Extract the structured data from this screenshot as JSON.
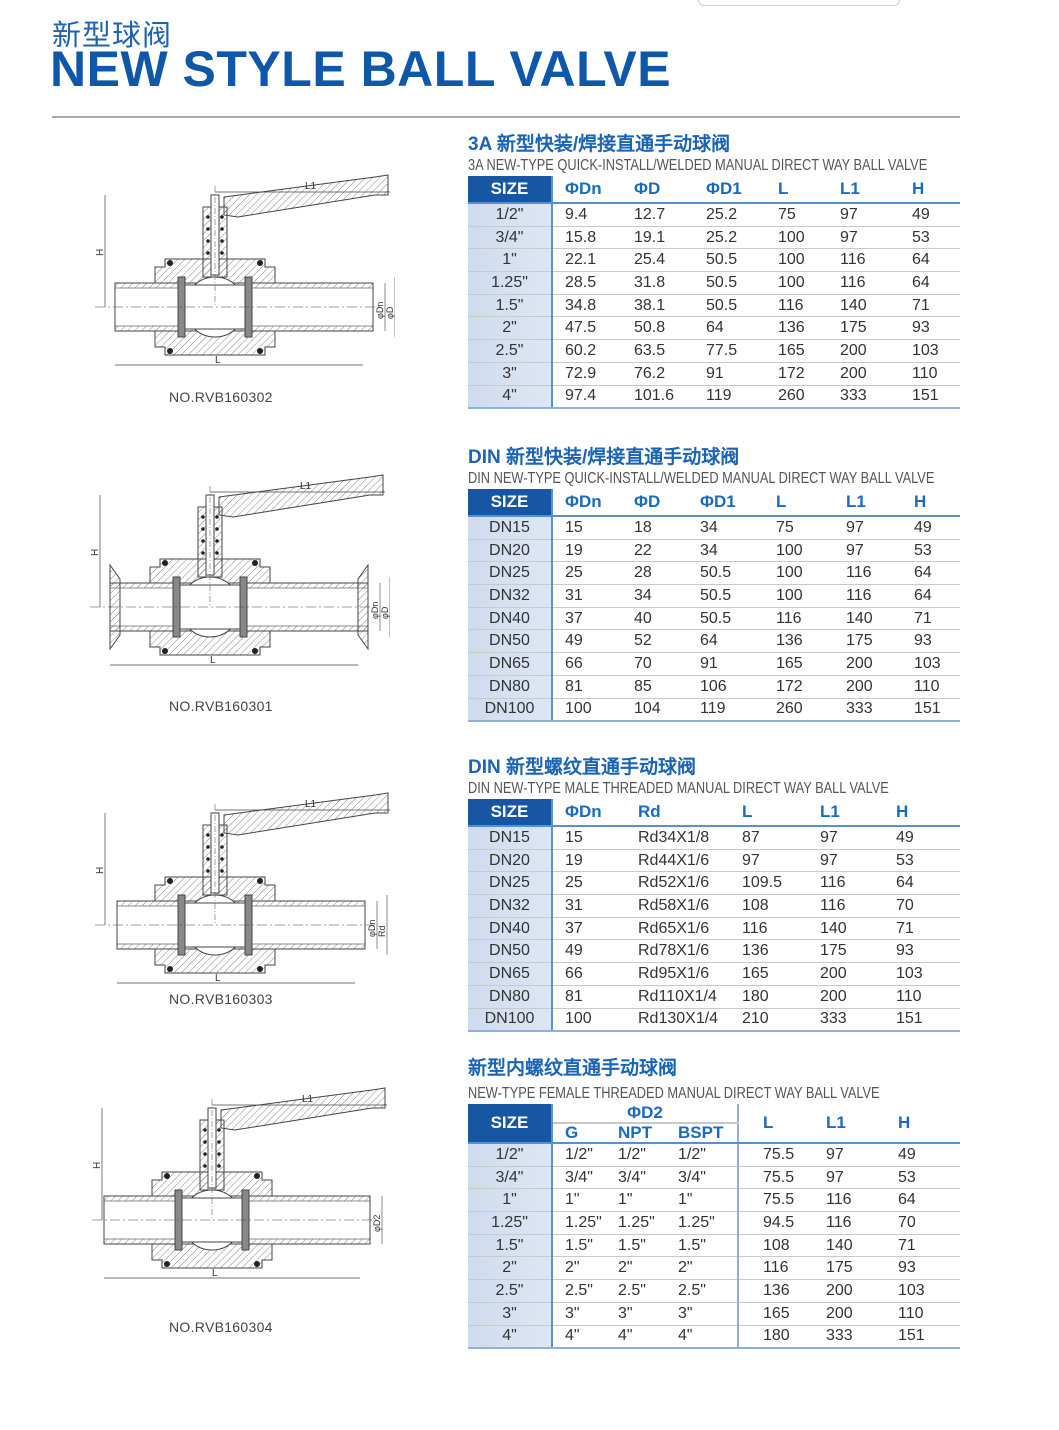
{
  "header": {
    "title_cn": "新型球阀",
    "title_en": "NEW STYLE BALL VALVE"
  },
  "colors": {
    "brand_blue": "#0f57a8",
    "size_header_bg": "#1756a2",
    "size_column_bg": "#d5dff0",
    "column_header_text": "#1a6bc0"
  },
  "sections": [
    {
      "title": "3A 新型快装/焊接直通手动球阀",
      "subtitle": "3A NEW-TYPE QUICK-INSTALL/WELDED MANUAL DIRECT WAY BALL VALVE",
      "model": "NO.RVB160302",
      "drawing_labels": {
        "top": "L1",
        "left": "H",
        "bottom": "L",
        "right": [
          "φDn",
          "φD"
        ]
      },
      "columns": [
        "SIZE",
        "ΦDn",
        "ΦD",
        "ΦD1",
        "L",
        "L1",
        "H"
      ],
      "rows": [
        [
          "1/2\"",
          "9.4",
          "12.7",
          "25.2",
          "75",
          "97",
          "49"
        ],
        [
          "3/4\"",
          "15.8",
          "19.1",
          "25.2",
          "100",
          "97",
          "53"
        ],
        [
          "1\"",
          "22.1",
          "25.4",
          "50.5",
          "100",
          "116",
          "64"
        ],
        [
          "1.25\"",
          "28.5",
          "31.8",
          "50.5",
          "100",
          "116",
          "64"
        ],
        [
          "1.5\"",
          "34.8",
          "38.1",
          "50.5",
          "116",
          "140",
          "71"
        ],
        [
          "2\"",
          "47.5",
          "50.8",
          "64",
          "136",
          "175",
          "93"
        ],
        [
          "2.5\"",
          "60.2",
          "63.5",
          "77.5",
          "165",
          "200",
          "103"
        ],
        [
          "3\"",
          "72.9",
          "76.2",
          "91",
          "172",
          "200",
          "110"
        ],
        [
          "4\"",
          "97.4",
          "101.6",
          "119",
          "260",
          "333",
          "151"
        ]
      ]
    },
    {
      "title": "DIN 新型快装/焊接直通手动球阀",
      "subtitle": "DIN NEW-TYPE QUICK-INSTALL/WELDED MANUAL DIRECT WAY BALL VALVE",
      "model": "NO.RVB160301",
      "drawing_labels": {
        "top": "L1",
        "left": "H",
        "bottom": "L",
        "right": [
          "φDn",
          "φD",
          "φD1"
        ]
      },
      "columns": [
        "SIZE",
        "ΦDn",
        "ΦD",
        "ΦD1",
        "L",
        "L1",
        "H"
      ],
      "rows": [
        [
          "DN15",
          "15",
          "18",
          "34",
          "75",
          "97",
          "49"
        ],
        [
          "DN20",
          "19",
          "22",
          "34",
          "100",
          "97",
          "53"
        ],
        [
          "DN25",
          "25",
          "28",
          "50.5",
          "100",
          "116",
          "64"
        ],
        [
          "DN32",
          "31",
          "34",
          "50.5",
          "100",
          "116",
          "64"
        ],
        [
          "DN40",
          "37",
          "40",
          "50.5",
          "116",
          "140",
          "71"
        ],
        [
          "DN50",
          "49",
          "52",
          "64",
          "136",
          "175",
          "93"
        ],
        [
          "DN65",
          "66",
          "70",
          "91",
          "165",
          "200",
          "103"
        ],
        [
          "DN80",
          "81",
          "85",
          "106",
          "172",
          "200",
          "110"
        ],
        [
          "DN100",
          "100",
          "104",
          "119",
          "260",
          "333",
          "151"
        ]
      ]
    },
    {
      "title": "DIN 新型螺纹直通手动球阀",
      "subtitle": "DIN NEW-TYPE MALE THREADED MANUAL DIRECT WAY BALL VALVE",
      "model": "NO.RVB160303",
      "drawing_labels": {
        "top": "L1",
        "left": "H",
        "bottom": "L",
        "right": [
          "φDn",
          "Rd"
        ]
      },
      "columns": [
        "SIZE",
        "ΦDn",
        "Rd",
        "L",
        "L1",
        "H"
      ],
      "rows": [
        [
          "DN15",
          "15",
          "Rd34X1/8",
          "87",
          "97",
          "49"
        ],
        [
          "DN20",
          "19",
          "Rd44X1/6",
          "97",
          "97",
          "53"
        ],
        [
          "DN25",
          "25",
          "Rd52X1/6",
          "109.5",
          "116",
          "64"
        ],
        [
          "DN32",
          "31",
          "Rd58X1/6",
          "108",
          "116",
          "70"
        ],
        [
          "DN40",
          "37",
          "Rd65X1/6",
          "116",
          "140",
          "71"
        ],
        [
          "DN50",
          "49",
          "Rd78X1/6",
          "136",
          "175",
          "93"
        ],
        [
          "DN65",
          "66",
          "Rd95X1/6",
          "165",
          "200",
          "103"
        ],
        [
          "DN80",
          "81",
          "Rd110X1/4",
          "180",
          "200",
          "110"
        ],
        [
          "DN100",
          "100",
          "Rd130X1/4",
          "210",
          "333",
          "151"
        ]
      ]
    },
    {
      "title": "新型内螺纹直通手动球阀",
      "subtitle": "NEW-TYPE FEMALE THREADED MANUAL DIRECT WAY BALL VALVE",
      "model": "NO.RVB160304",
      "drawing_labels": {
        "top": "L1",
        "left": "H",
        "bottom": "L",
        "right": [
          "φD2"
        ]
      },
      "group_header": "ΦD2",
      "columns": [
        "SIZE",
        "G",
        "NPT",
        "BSPT",
        "L",
        "L1",
        "H"
      ],
      "rows": [
        [
          "1/2\"",
          "1/2\"",
          "1/2\"",
          "1/2\"",
          "75.5",
          "97",
          "49"
        ],
        [
          "3/4\"",
          "3/4\"",
          "3/4\"",
          "3/4\"",
          "75.5",
          "97",
          "53"
        ],
        [
          "1\"",
          "1\"",
          "1\"",
          "1\"",
          "75.5",
          "116",
          "64"
        ],
        [
          "1.25\"",
          "1.25\"",
          "1.25\"",
          "1.25\"",
          "94.5",
          "116",
          "70"
        ],
        [
          "1.5\"",
          "1.5\"",
          "1.5\"",
          "1.5\"",
          "108",
          "140",
          "71"
        ],
        [
          "2\"",
          "2\"",
          "2\"",
          "2\"",
          "116",
          "175",
          "93"
        ],
        [
          "2.5\"",
          "2.5\"",
          "2.5\"",
          "2.5\"",
          "136",
          "200",
          "103"
        ],
        [
          "3\"",
          "3\"",
          "3\"",
          "3\"",
          "165",
          "200",
          "110"
        ],
        [
          "4\"",
          "4\"",
          "4\"",
          "4\"",
          "180",
          "333",
          "151"
        ]
      ]
    }
  ]
}
